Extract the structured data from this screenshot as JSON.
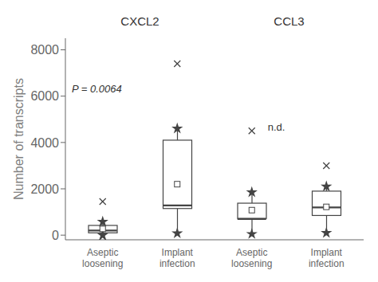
{
  "chart_data": {
    "type": "box",
    "ylabel": "Number of transcripts",
    "categories": [
      "Aseptic\nloosening",
      "Implant\ninfection",
      "Aseptic\nloosening",
      "Implant\ninfection"
    ],
    "boxes": [
      {
        "q1": 100,
        "median": 200,
        "q3": 420,
        "whislo": 0,
        "whishi": 580,
        "mean": 270,
        "fliers": [
          1450,
          -70
        ]
      },
      {
        "q1": 1150,
        "median": 1280,
        "q3": 4100,
        "whislo": 80,
        "whishi": 4600,
        "mean": 2200,
        "fliers": [
          7400
        ]
      },
      {
        "q1": 720,
        "median": 700,
        "q3": 1380,
        "whislo": 50,
        "whishi": 1850,
        "mean": 1080,
        "fliers": [
          4500
        ]
      },
      {
        "q1": 850,
        "median": 1200,
        "q3": 1900,
        "whislo": 100,
        "whishi": 2100,
        "mean": 1220,
        "fliers": [
          3000
        ]
      }
    ],
    "annotations": [
      "CXCL2",
      "CCL3",
      "P = 0.0064",
      "n.d."
    ],
    "ylim": [
      -200,
      8500
    ],
    "yticks": [
      0,
      2000,
      4000,
      6000,
      8000
    ]
  }
}
